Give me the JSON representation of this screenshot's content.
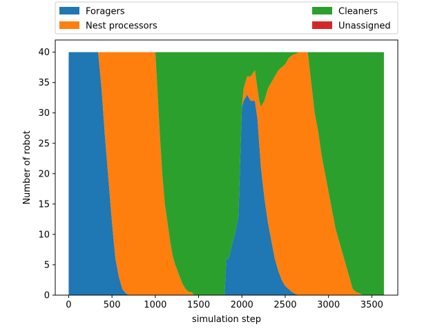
{
  "chart_data": {
    "type": "area",
    "stacked": true,
    "xlabel": "simulation step",
    "ylabel": "Number of robot",
    "xlim": [
      -155,
      3800
    ],
    "ylim": [
      0,
      42
    ],
    "xticks": [
      0,
      500,
      1000,
      1500,
      2000,
      2500,
      3000,
      3500
    ],
    "yticks": [
      0,
      5,
      10,
      15,
      20,
      25,
      30,
      35,
      40
    ],
    "grid": false,
    "legend": {
      "placement": "top, above plot, 2 columns",
      "entries": [
        "Foragers",
        "Nest processors",
        "Cleaners",
        "Unassigned"
      ]
    },
    "x": [
      0,
      340,
      380,
      420,
      460,
      500,
      540,
      580,
      620,
      660,
      700,
      1000,
      1020,
      1050,
      1080,
      1110,
      1140,
      1170,
      1200,
      1230,
      1270,
      1310,
      1350,
      1390,
      1420,
      1450,
      1480,
      1500,
      1780,
      1800,
      1820,
      1850,
      1880,
      1920,
      1960,
      2000,
      2020,
      2060,
      2100,
      2150,
      2180,
      2200,
      2220,
      2260,
      2300,
      2340,
      2380,
      2420,
      2460,
      2500,
      2540,
      2580,
      2620,
      2660,
      2700,
      2760,
      2800,
      2840,
      2880,
      2920,
      2960,
      3000,
      3040,
      3080,
      3120,
      3160,
      3200,
      3240,
      3280,
      3320,
      3360,
      3400,
      3640
    ],
    "series": [
      {
        "name": "Foragers",
        "color": "#1f77b4",
        "values": [
          40,
          40,
          34,
          26,
          19,
          12,
          6,
          3,
          1,
          0.3,
          0,
          0,
          0,
          0,
          0,
          0,
          0,
          0,
          0,
          0,
          0,
          0,
          0,
          0,
          0,
          0,
          0,
          0,
          0,
          0,
          6,
          6,
          8,
          10,
          13,
          31,
          32,
          33,
          32,
          32,
          29,
          25,
          21,
          16,
          12,
          9,
          6,
          4,
          2.5,
          1.5,
          1,
          0.5,
          0.2,
          0,
          0,
          0,
          0,
          0,
          0,
          0,
          0,
          0,
          0,
          0,
          0,
          0,
          0,
          0,
          0,
          0,
          0,
          0,
          0
        ]
      },
      {
        "name": "Nest processors",
        "color": "#ff7f0e",
        "values": [
          0,
          0,
          6,
          14,
          21,
          28,
          34,
          37,
          39,
          39.7,
          40,
          40,
          35,
          27,
          20,
          15,
          12,
          9,
          6.5,
          5,
          3.5,
          2,
          1,
          0.5,
          0.5,
          0,
          0,
          0,
          0,
          0,
          0,
          0,
          0,
          0,
          0,
          0,
          2,
          3,
          4,
          5,
          5,
          7,
          10,
          16,
          22,
          26,
          30,
          33,
          35,
          36.5,
          38,
          39,
          39.5,
          40,
          40,
          40,
          35,
          30,
          27,
          23,
          20,
          17,
          14,
          11,
          9,
          7,
          5,
          3,
          1,
          0.5,
          0.3,
          0,
          0
        ]
      },
      {
        "name": "Cleaners",
        "color": "#2ca02c",
        "values": [
          0,
          0,
          0,
          0,
          0,
          0,
          0,
          0,
          0,
          0,
          0,
          0,
          5,
          13,
          20,
          25,
          28,
          31,
          33.5,
          35,
          36.5,
          38,
          39,
          39.5,
          39.5,
          40,
          40,
          40,
          40,
          40,
          34,
          34,
          32,
          30,
          27,
          9,
          6,
          4,
          4,
          3,
          6,
          8,
          9,
          8,
          6,
          5,
          4,
          3,
          2.5,
          2,
          1,
          0.5,
          0.3,
          0,
          0,
          0,
          5,
          10,
          13,
          17,
          20,
          23,
          26,
          29,
          31,
          33,
          35,
          37,
          39,
          39.5,
          39.7,
          40,
          40
        ]
      },
      {
        "name": "Unassigned",
        "color": "#d62728",
        "values": [
          0,
          0,
          0,
          0,
          0,
          0,
          0,
          0,
          0,
          0,
          0,
          0,
          0,
          0,
          0,
          0,
          0,
          0,
          0,
          0,
          0,
          0,
          0,
          0,
          0,
          0,
          0,
          0,
          0,
          0,
          0,
          0,
          0,
          0,
          0,
          0,
          0,
          0,
          0,
          0,
          0,
          0,
          0,
          0,
          0,
          0,
          0,
          0,
          0,
          0,
          0,
          0,
          0,
          0,
          0,
          0,
          0,
          0,
          0,
          0,
          0,
          0,
          0,
          0,
          0,
          0,
          0,
          0,
          0,
          0,
          0,
          0,
          0
        ]
      }
    ]
  }
}
